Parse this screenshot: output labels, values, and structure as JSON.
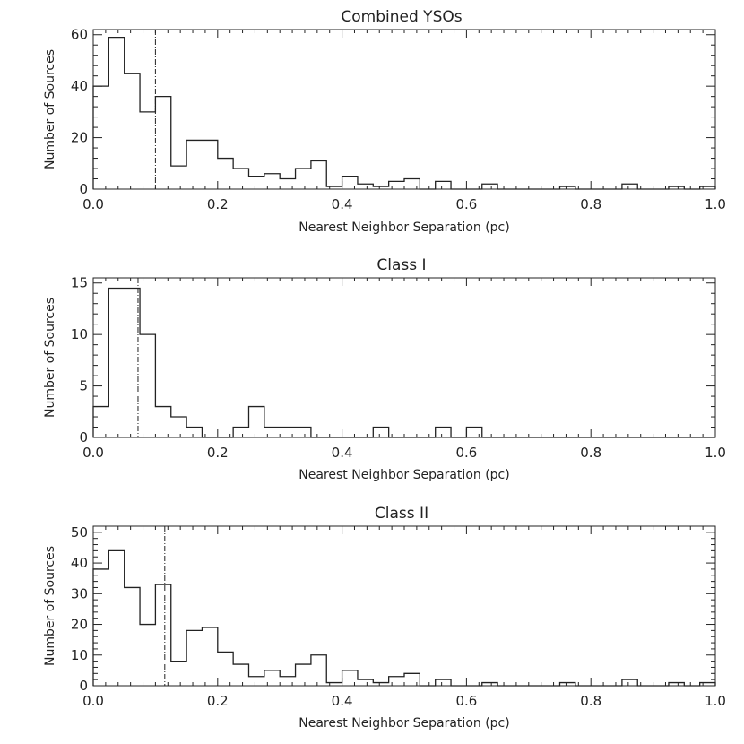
{
  "chart_data": [
    {
      "type": "bar",
      "title": "Combined YSOs",
      "xlabel": "Nearest Neighbor Separation (pc)",
      "ylabel": "Number of Sources",
      "xlim": [
        0.0,
        1.0
      ],
      "ylim": [
        0,
        62
      ],
      "xticks": [
        "0.0",
        "0.2",
        "0.4",
        "0.6",
        "0.8",
        "1.0"
      ],
      "yticks": [
        0,
        20,
        40,
        60
      ],
      "bin_width": 0.025,
      "values": [
        40,
        59,
        45,
        30,
        36,
        9,
        19,
        19,
        12,
        8,
        5,
        6,
        4,
        8,
        11,
        1,
        5,
        2,
        1,
        3,
        4,
        0,
        3,
        0,
        0,
        2,
        0,
        0,
        0,
        0,
        1,
        0,
        0,
        0,
        2,
        0,
        0,
        1,
        0,
        1
      ],
      "reference_line": 0.1
    },
    {
      "type": "bar",
      "title": "Class I",
      "xlabel": "Nearest Neighbor Separation (pc)",
      "ylabel": "Number of Sources",
      "xlim": [
        0.0,
        1.0
      ],
      "ylim": [
        0,
        15.5
      ],
      "xticks": [
        "0.0",
        "0.2",
        "0.4",
        "0.6",
        "0.8",
        "1.0"
      ],
      "yticks": [
        0,
        5,
        10,
        15
      ],
      "bin_width": 0.025,
      "values": [
        3,
        14.5,
        14.5,
        10,
        3,
        2,
        1,
        0,
        0,
        1,
        3,
        1,
        1,
        1,
        0,
        0,
        0,
        0,
        1,
        0,
        0,
        0,
        1,
        0,
        1,
        0,
        0,
        0,
        0,
        0,
        0,
        0,
        0,
        0,
        0,
        0,
        0,
        0,
        0,
        0
      ],
      "reference_line": 0.072
    },
    {
      "type": "bar",
      "title": "Class II",
      "xlabel": "Nearest Neighbor Separation (pc)",
      "ylabel": "Number of Sources",
      "xlim": [
        0.0,
        1.0
      ],
      "ylim": [
        0,
        52
      ],
      "xticks": [
        "0.0",
        "0.2",
        "0.4",
        "0.6",
        "0.8",
        "1.0"
      ],
      "yticks": [
        0,
        10,
        20,
        30,
        40,
        50
      ],
      "bin_width": 0.025,
      "values": [
        38,
        44,
        32,
        20,
        33,
        8,
        18,
        19,
        11,
        7,
        3,
        5,
        3,
        7,
        10,
        1,
        5,
        2,
        1,
        3,
        4,
        0,
        2,
        0,
        0,
        1,
        0,
        0,
        0,
        0,
        1,
        0,
        0,
        0,
        2,
        0,
        0,
        1,
        0,
        1
      ],
      "reference_line": 0.115
    }
  ]
}
